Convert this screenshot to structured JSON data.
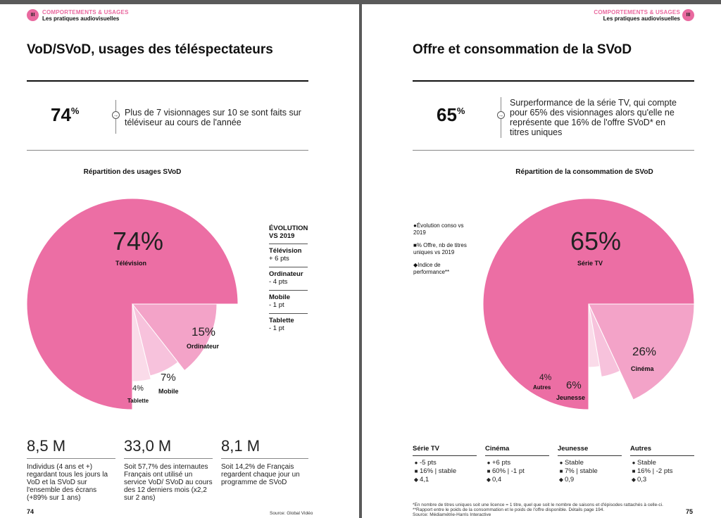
{
  "left": {
    "badge": "III",
    "section": "COMPORTEMENTS & USAGES",
    "subsection": "Les pratiques audiovisuelles",
    "title": "VoD/SVoD, usages des téléspectateurs",
    "stat": {
      "value": "74",
      "unit": "%",
      "text": "Plus de 7 visionnages sur 10 se sont faits sur téléviseur au cours de l'année"
    },
    "chart_title": "Répartition des usages SVoD",
    "slices": [
      {
        "pct": "74%",
        "label": "Télévision"
      },
      {
        "pct": "15%",
        "label": "Ordinateur"
      },
      {
        "pct": "7%",
        "label": "Mobile"
      },
      {
        "pct": "4%",
        "label": "Tablette"
      }
    ],
    "legend": {
      "heading": "ÉVOLUTION VS 2019",
      "items": [
        {
          "name": "Télévision",
          "value": "+ 6 pts"
        },
        {
          "name": "Ordinateur",
          "value": "- 4 pts"
        },
        {
          "name": "Mobile",
          "value": "- 1 pt"
        },
        {
          "name": "Tablette",
          "value": "- 1 pt"
        }
      ]
    },
    "numbers": [
      {
        "value": "8,5 M",
        "text": "Individus (4 ans et +) regardant tous les jours la VoD et la SVoD sur l'ensemble des écrans (+89% sur 1 ans)"
      },
      {
        "value": "33,0 M",
        "text": "Soit 57,7% des internautes Français ont utilisé un service VoD/ SVoD au cours des 12 derniers mois (x2,2 sur 2 ans)"
      },
      {
        "value": "8,1 M",
        "text": "Soit 14,2% de Français regardent chaque jour un programme de SVoD"
      }
    ],
    "page_number": "74",
    "source": "Source: Global Vidéo"
  },
  "right": {
    "badge": "III",
    "section": "COMPORTEMENTS & USAGES",
    "subsection": "Les pratiques audiovisuelles",
    "title": "Offre et consommation de la SVoD",
    "stat": {
      "value": "65",
      "unit": "%",
      "text": "Surperformance de la série TV, qui compte pour 65% des visionnages alors qu'elle ne représente que 16% de l'offre SVoD* en titres uniques"
    },
    "chart_title": "Répartition de la consommation de SVoD",
    "slices": [
      {
        "pct": "65%",
        "label": "Série TV"
      },
      {
        "pct": "26%",
        "label": "Cinéma"
      },
      {
        "pct": "6%",
        "label": "Jeunesse"
      },
      {
        "pct": "4%",
        "label": "Autres"
      }
    ],
    "key": [
      {
        "symbol": "●",
        "text": "Évolution conso vs 2019"
      },
      {
        "symbol": "■",
        "text": "% Offre, nb de titres uniques vs 2019"
      },
      {
        "symbol": "◆",
        "text": "Indice de performance**"
      }
    ],
    "columns": [
      {
        "name": "Série TV",
        "rows": [
          "-5 pts",
          "16% | stable",
          "4,1"
        ]
      },
      {
        "name": "Cinéma",
        "rows": [
          "+6 pts",
          "60% | -1 pt",
          "0,4"
        ]
      },
      {
        "name": "Jeunesse",
        "rows": [
          "Stable",
          "7% | stable",
          "0,9"
        ]
      },
      {
        "name": "Autres",
        "rows": [
          "Stable",
          "16% | -2 pts",
          "0,3"
        ]
      }
    ],
    "footnotes": [
      "*En nombre de titres uniques soit une licence = 1 titre, quel que soit le nombre de saisons et d'épisodes rattachés à celle-ci.",
      "**Rapport entre le poids de la consommation et le poids de l'offre disponible. Détails page 194.",
      "Source: Médiamétrie-Harris Interactive"
    ],
    "page_number": "75"
  },
  "colors": {
    "pink_dark": "#ec6ea4",
    "pink_mid": "#f3a3c8",
    "pink_light": "#f7c2dc",
    "pink_pale": "#fadbe9",
    "accent": "#e9699f"
  }
}
